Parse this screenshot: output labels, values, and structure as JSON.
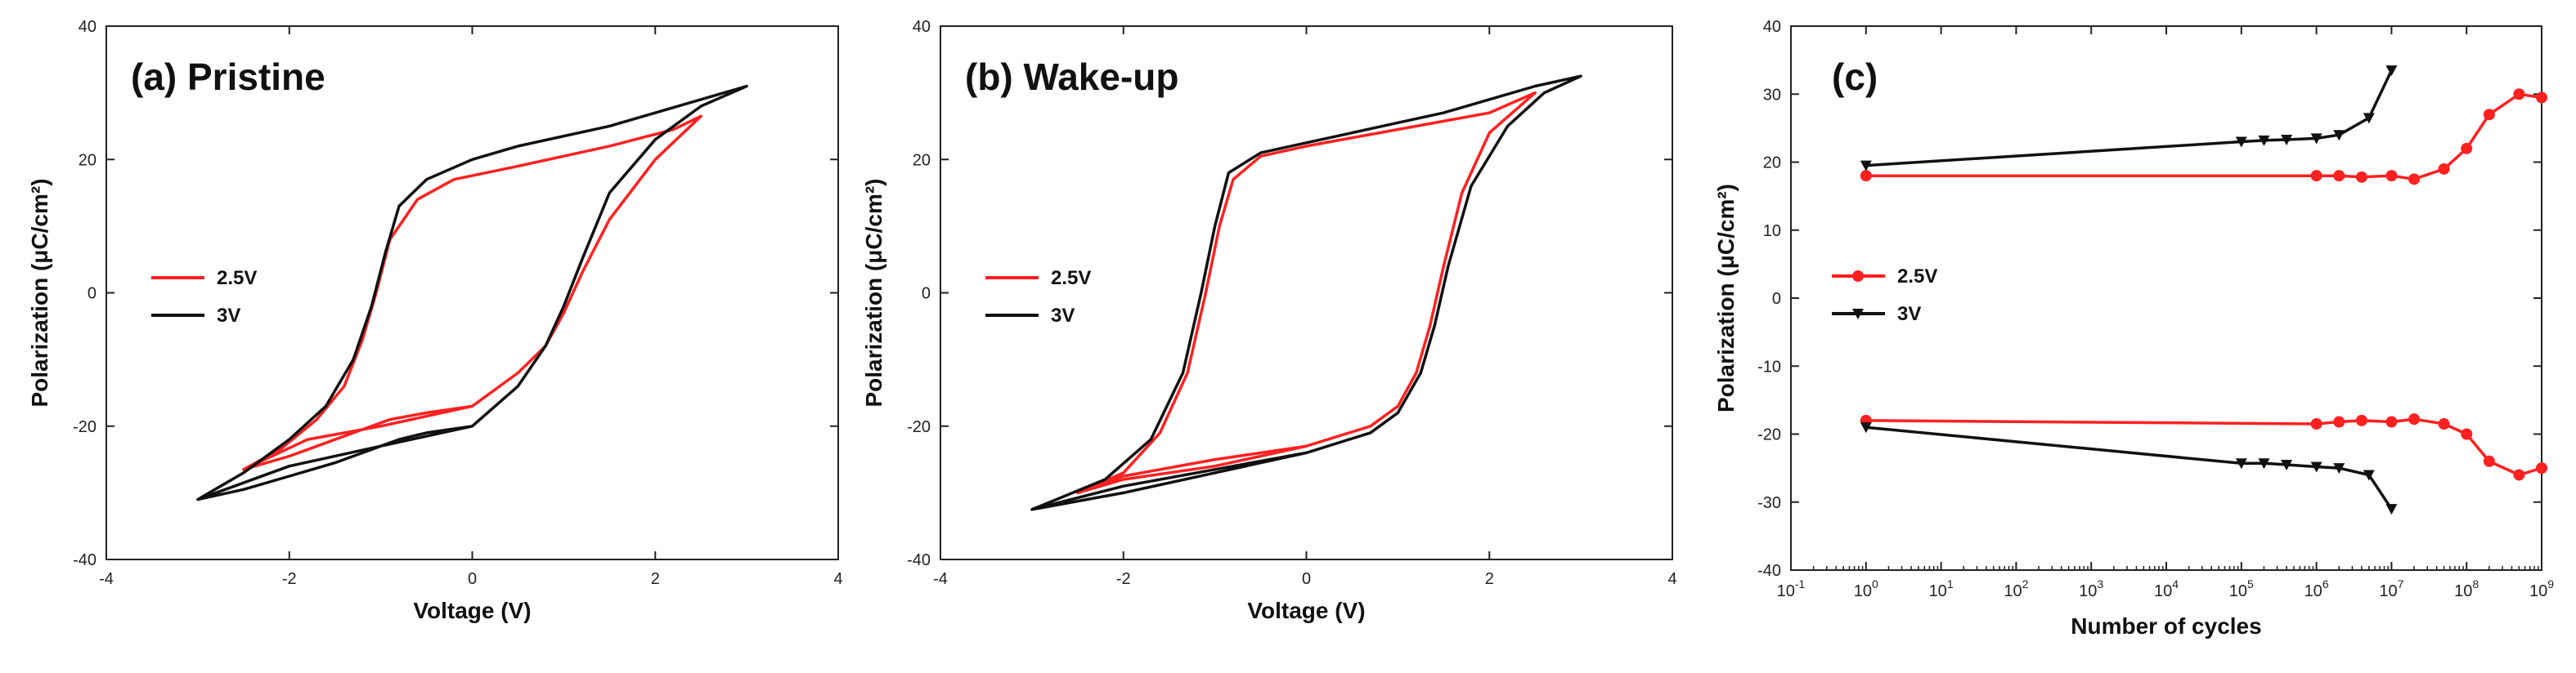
{
  "chart_data": [
    {
      "id": "a",
      "type": "line",
      "title": "(a) Pristine",
      "xlabel": "Voltage (V)",
      "ylabel": "Polarization (μC/cm²)",
      "xlim": [
        -4,
        4
      ],
      "ylim": [
        -40,
        40
      ],
      "xticks": [
        "-4",
        "-2",
        "0",
        "2",
        "4"
      ],
      "yticks": [
        "-40",
        "-20",
        "0",
        "20",
        "40"
      ],
      "legend": {
        "position": "middle-left",
        "entries": [
          "2.5V",
          "3V"
        ]
      },
      "series": [
        {
          "name": "2.5V",
          "color": "#ff2020",
          "x": [
            0,
            -0.5,
            -0.9,
            -1.1,
            -1.3,
            -1.6,
            -2.0,
            -2.5,
            -1.8,
            -1.0,
            0,
            0.5,
            0.8,
            1.0,
            1.2,
            1.5,
            2.0,
            2.5,
            2.2,
            1.5,
            0.5,
            -0.2,
            -0.6,
            -0.9,
            -1.05,
            -1.2,
            -1.4,
            -1.7,
            -2.1,
            -2.5
          ],
          "y": [
            -17,
            -18,
            -19,
            -20,
            -21,
            -22.5,
            -24.5,
            -26.5,
            -22,
            -20,
            -17,
            -12,
            -8,
            -3,
            3,
            11,
            20,
            26.5,
            24.5,
            22,
            19,
            17,
            14,
            8,
            0,
            -7,
            -14,
            -19,
            -23.5,
            -26.5
          ]
        },
        {
          "name": "3V",
          "color": "#111111",
          "x": [
            0,
            -0.5,
            -0.8,
            -1.0,
            -1.2,
            -1.5,
            -2.0,
            -2.5,
            -3.0,
            -2.0,
            -1.0,
            0,
            0.5,
            0.8,
            1.0,
            1.2,
            1.5,
            2.0,
            2.5,
            3.0,
            2.5,
            1.5,
            0.5,
            0,
            -0.5,
            -0.8,
            -0.95,
            -1.1,
            -1.3,
            -1.6,
            -2.0,
            -2.5,
            -3.0
          ],
          "y": [
            -20,
            -21,
            -22,
            -23,
            -24,
            -25.5,
            -27.5,
            -29.5,
            -31,
            -26,
            -23,
            -20,
            -14,
            -8,
            -2,
            5,
            15,
            23,
            28,
            31,
            29,
            25,
            22,
            20,
            17,
            13,
            6,
            -2,
            -10,
            -17,
            -22,
            -27,
            -31
          ]
        }
      ]
    },
    {
      "id": "b",
      "type": "line",
      "title": "(b) Wake-up",
      "xlabel": "Voltage (V)",
      "ylabel": "Polarization (μC/cm²)",
      "xlim": [
        -4,
        4
      ],
      "ylim": [
        -40,
        40
      ],
      "xticks": [
        "-4",
        "-2",
        "0",
        "2",
        "4"
      ],
      "yticks": [
        "-40",
        "-20",
        "0",
        "20",
        "40"
      ],
      "legend": {
        "position": "middle-left",
        "entries": [
          "2.5V",
          "3V"
        ]
      },
      "series": [
        {
          "name": "2.5V",
          "color": "#ff2020",
          "x": [
            0,
            -1.0,
            -2.0,
            -2.5,
            -2.0,
            -1.0,
            0,
            0.7,
            1.0,
            1.2,
            1.35,
            1.5,
            1.7,
            2.0,
            2.5,
            2.0,
            1.0,
            0,
            -0.5,
            -0.8,
            -0.95,
            -1.1,
            -1.3,
            -1.6,
            -2.0,
            -2.5
          ],
          "y": [
            -23,
            -25,
            -27.5,
            -30,
            -28,
            -26,
            -23,
            -20,
            -17,
            -12,
            -5,
            4,
            15,
            24,
            30,
            27,
            24.5,
            22,
            20.5,
            17,
            10,
            0,
            -12,
            -21,
            -27,
            -30
          ]
        },
        {
          "name": "3V",
          "color": "#111111",
          "x": [
            0,
            -1.0,
            -2.0,
            -3.0,
            -2.0,
            -1.0,
            0,
            0.7,
            1.0,
            1.25,
            1.4,
            1.55,
            1.8,
            2.2,
            2.6,
            3.0,
            2.5,
            1.5,
            0.5,
            0,
            -0.5,
            -0.85,
            -1.0,
            -1.15,
            -1.35,
            -1.7,
            -2.2,
            -3.0
          ],
          "y": [
            -24,
            -26.5,
            -29,
            -32.5,
            -30,
            -27,
            -24,
            -21,
            -18,
            -12,
            -5,
            4,
            16,
            25,
            30,
            32.5,
            31,
            27,
            24,
            22.5,
            21,
            18,
            10,
            0,
            -12,
            -22,
            -28,
            -32.5
          ]
        }
      ]
    },
    {
      "id": "c",
      "type": "line",
      "title": "(c)",
      "xlabel": "Number of cycles",
      "ylabel": "Polarization (μC/cm²)",
      "xscale": "log",
      "xlim": [
        0.1,
        1000000000
      ],
      "ylim": [
        -40,
        40
      ],
      "xticks": [
        {
          "base": "10",
          "exp": "-1"
        },
        {
          "base": "10",
          "exp": "0"
        },
        {
          "base": "10",
          "exp": "1"
        },
        {
          "base": "10",
          "exp": "2"
        },
        {
          "base": "10",
          "exp": "3"
        },
        {
          "base": "10",
          "exp": "4"
        },
        {
          "base": "10",
          "exp": "5"
        },
        {
          "base": "10",
          "exp": "6"
        },
        {
          "base": "10",
          "exp": "7"
        },
        {
          "base": "10",
          "exp": "8"
        },
        {
          "base": "10",
          "exp": "9"
        }
      ],
      "yticks": [
        "-40",
        "-30",
        "-20",
        "-10",
        "0",
        "10",
        "20",
        "30",
        "40"
      ],
      "legend": {
        "position": "middle-left",
        "entries": [
          "2.5V",
          "3V"
        ]
      },
      "series": [
        {
          "name": "2.5V (+Pr)",
          "legend": "2.5V",
          "color": "#ff2020",
          "marker": "circle",
          "x": [
            1,
            1000000,
            2000000,
            4000000,
            10000000,
            20000000,
            50000000,
            100000000,
            200000000,
            500000000,
            1000000000
          ],
          "y": [
            18,
            18,
            18,
            17.8,
            18,
            17.5,
            19,
            22,
            27,
            30,
            29.5
          ]
        },
        {
          "name": "2.5V (-Pr)",
          "legend": "",
          "color": "#ff2020",
          "marker": "circle",
          "x": [
            1,
            1000000,
            2000000,
            4000000,
            10000000,
            20000000,
            50000000,
            100000000,
            200000000,
            500000000,
            1000000000
          ],
          "y": [
            -18,
            -18.5,
            -18.2,
            -18,
            -18.2,
            -17.8,
            -18.5,
            -20,
            -24,
            -26,
            -25
          ]
        },
        {
          "name": "3V (+Pr)",
          "legend": "3V",
          "color": "#111111",
          "marker": "triangle-down",
          "x": [
            1,
            100000,
            200000,
            400000,
            1000000,
            2000000,
            5000000,
            10000000
          ],
          "y": [
            19.5,
            23,
            23.2,
            23.3,
            23.5,
            24,
            26.5,
            33.5
          ]
        },
        {
          "name": "3V (-Pr)",
          "legend": "",
          "color": "#111111",
          "marker": "triangle-down",
          "x": [
            1,
            100000,
            200000,
            400000,
            1000000,
            2000000,
            5000000,
            10000000
          ],
          "y": [
            -19,
            -24.3,
            -24.3,
            -24.5,
            -24.8,
            -25,
            -26,
            -31
          ]
        }
      ]
    }
  ]
}
